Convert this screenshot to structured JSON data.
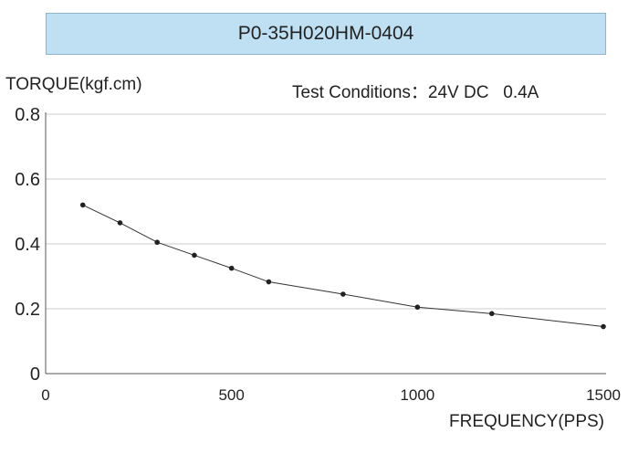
{
  "chart_data": {
    "type": "line",
    "title": "P0-35H020HM-0404",
    "ylabel": "TORQUE(kgf.cm)",
    "xlabel": "FREQUENCY(PPS)",
    "annotation": "Test Conditions：24V DC   0.4A",
    "xlim": [
      0,
      1500
    ],
    "ylim": [
      0,
      0.8
    ],
    "xticks": [
      "0",
      "500",
      "1000",
      "1500"
    ],
    "yticks": [
      "0",
      "0.2",
      "0.4",
      "0.6",
      "0.8"
    ],
    "grid": "horizontal",
    "series": [
      {
        "x": [
          100,
          200,
          300,
          400,
          500,
          600,
          800,
          1000,
          1200,
          1500
        ],
        "y": [
          0.52,
          0.465,
          0.405,
          0.365,
          0.325,
          0.283,
          0.245,
          0.205,
          0.185,
          0.145
        ]
      }
    ],
    "colors": {
      "title_bg": "#bfe0f2",
      "line": "#333333",
      "grid": "#cccccc"
    }
  }
}
